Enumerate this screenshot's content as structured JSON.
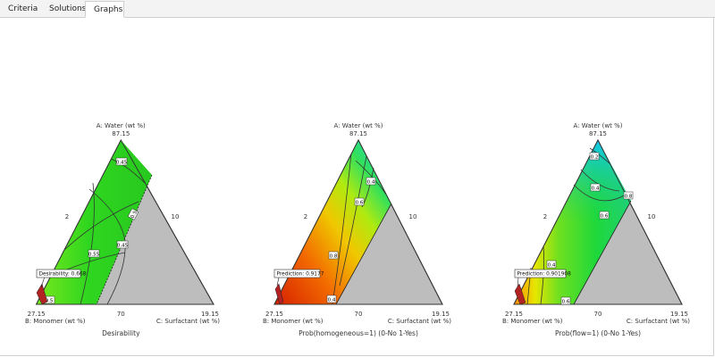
{
  "tabs": [
    {
      "label": "Criteria",
      "icon": "criteria-list-icon",
      "active": false
    },
    {
      "label": "Solutions",
      "icon": "solutions-doc-icon",
      "active": false
    },
    {
      "label": "Graphs",
      "icon": "graphs-line-icon",
      "active": true
    }
  ],
  "colors": {
    "gray_region": "#bdbdbd",
    "flag_fill": "#b22222"
  },
  "plots": [
    {
      "vertex_a": "A: Water (wt %)",
      "vertex_a_value": "87.15",
      "left_label": "2",
      "right_label": "10",
      "bottom_left_value": "27.15",
      "bottom_mid_value": "70",
      "bottom_right_value": "19.15",
      "vertex_b": "B: Monomer (wt %)",
      "vertex_c": "C: Surfactant (wt %)",
      "title": "Desirability",
      "callout": "Desirability: 0.668",
      "contours": [
        "0.45",
        "0.5",
        "0.45",
        "0.55",
        "0.5"
      ]
    },
    {
      "vertex_a": "A: Water (wt %)",
      "vertex_a_value": "87.15",
      "left_label": "2",
      "right_label": "10",
      "bottom_left_value": "27.15",
      "bottom_mid_value": "70",
      "bottom_right_value": "19.15",
      "vertex_b": "B: Monomer (wt %)",
      "vertex_c": "C: Surfactant (wt %)",
      "title": "Prob(homogeneous=1) (0-No 1-Yes)",
      "callout": "Prediction: 0.9177",
      "contours": [
        "0.4",
        "0.6",
        "0.8",
        "0.4"
      ]
    },
    {
      "vertex_a": "A: Water (wt %)",
      "vertex_a_value": "87.15",
      "left_label": "2",
      "right_label": "10",
      "bottom_left_value": "27.15",
      "bottom_mid_value": "70",
      "bottom_right_value": "19.15",
      "vertex_b": "B: Monomer (wt %)",
      "vertex_c": "C: Surfactant (wt %)",
      "title": "Prob(flow=1) (0-No 1-Yes)",
      "callout": "Prediction: 0.901908",
      "contours": [
        "0.2",
        "0.4",
        "0.6",
        "0.8",
        "0.4",
        "0.6"
      ]
    }
  ]
}
